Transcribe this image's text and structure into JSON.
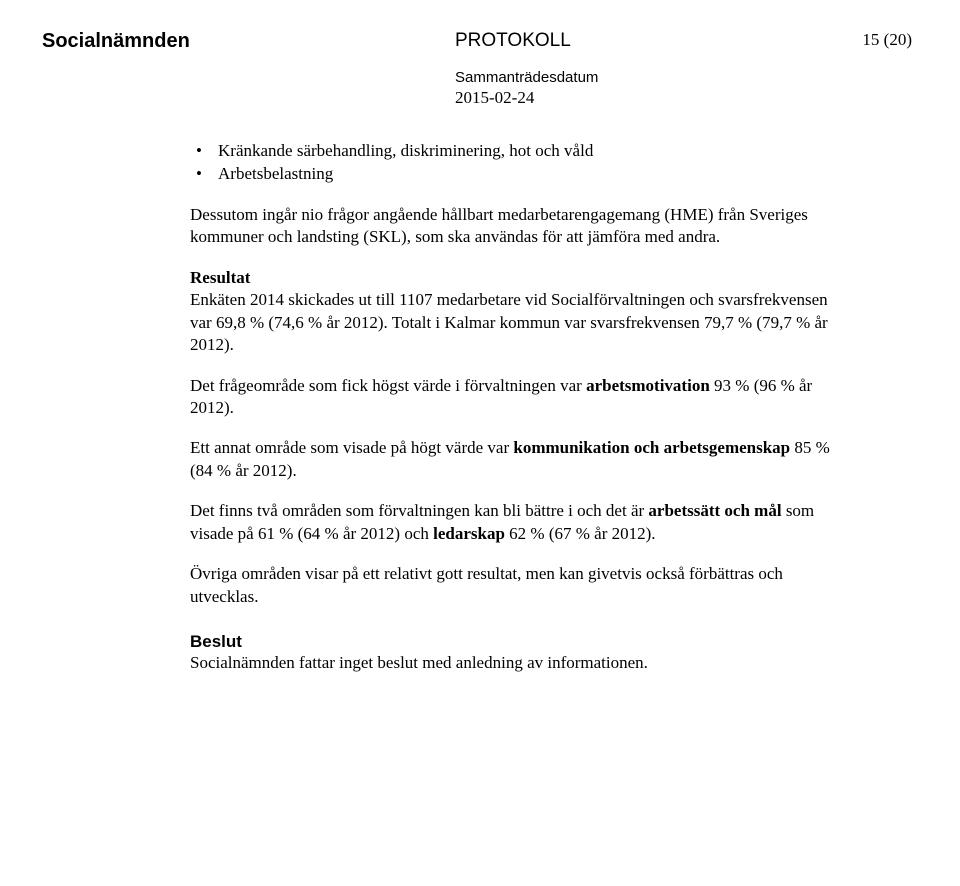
{
  "header": {
    "committee": "Socialnämnden",
    "doc_type": "PROTOKOLL",
    "page_number": "15 (20)",
    "meeting_label": "Sammanträdesdatum",
    "meeting_date": "2015-02-24"
  },
  "bullets": [
    "Kränkande särbehandling, diskriminering, hot och våld",
    "Arbetsbelastning"
  ],
  "intro": "Dessutom ingår nio frågor angående hållbart medarbetarengagemang (HME) från Sveriges kommuner och landsting (SKL), som ska användas för att jämföra med andra.",
  "result": {
    "heading": "Resultat",
    "p1": "Enkäten 2014 skickades ut till 1107 medarbetare vid Socialförvaltningen och svarsfrekvensen var 69,8 % (74,6 % år 2012). Totalt i Kalmar kommun var svarsfrekvensen 79,7 % (79,7 % år 2012)."
  },
  "p_motivation_pre": "Det frågeområde som fick högst värde i förvaltningen var ",
  "p_motivation_bold": "arbetsmotivation",
  "p_motivation_post": " 93 % (96 % år 2012).",
  "p_komm_pre": "Ett annat område som visade på högt värde var ",
  "p_komm_bold": "kommunikation och arbetsgemenskap",
  "p_komm_post": " 85 % (84 % år 2012).",
  "p_two_pre": "Det finns två områden som förvaltningen kan bli bättre i och det är ",
  "p_two_bold1": "arbetssätt och mål",
  "p_two_mid": " som visade på 61 % (64 % år 2012) och ",
  "p_two_bold2": "ledarskap",
  "p_two_post": " 62 % (67 % år 2012).",
  "p_other": "Övriga områden visar på ett relativt gott resultat, men kan givetvis också förbättras och utvecklas.",
  "decision": {
    "heading": "Beslut",
    "body": "Socialnämnden fattar inget beslut med anledning av informationen."
  }
}
